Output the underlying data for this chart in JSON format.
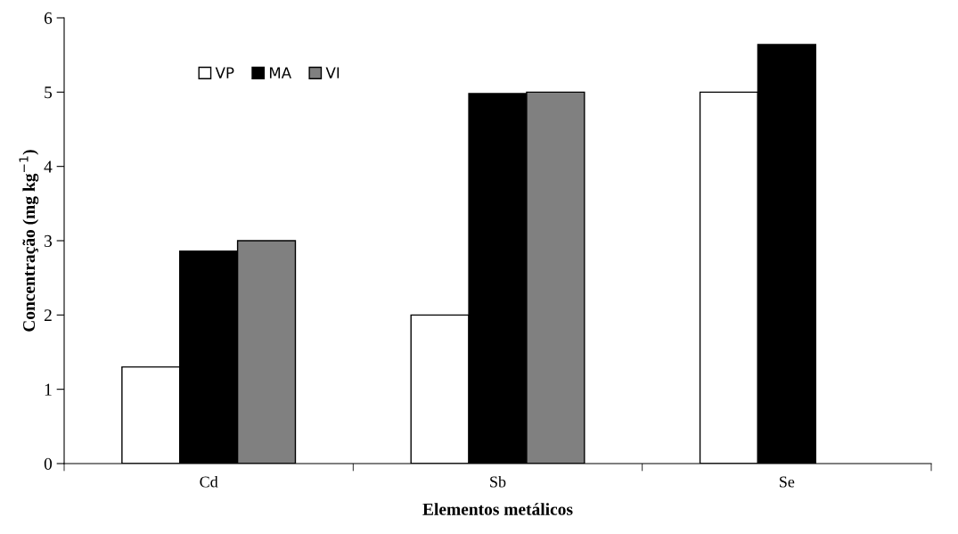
{
  "chart_data": {
    "type": "bar",
    "xlabel": "Elementos metálicos",
    "ylabel": "Concentração (mg kg$^{−1}$)",
    "categories": [
      "Cd",
      "Sb",
      "Se"
    ],
    "series": [
      {
        "name": "VP",
        "color": "#ffffff",
        "values": [
          1.3,
          2.0,
          5.0
        ]
      },
      {
        "name": "MA",
        "color": "#000000",
        "values": [
          2.86,
          4.98,
          5.64
        ]
      },
      {
        "name": "VI",
        "color": "#808080",
        "values": [
          3.0,
          5.0,
          null
        ]
      }
    ],
    "ylim": [
      0,
      6
    ],
    "yticks": [
      0,
      1,
      2,
      3,
      4,
      5,
      6
    ],
    "grid": false,
    "legend": "top left"
  }
}
